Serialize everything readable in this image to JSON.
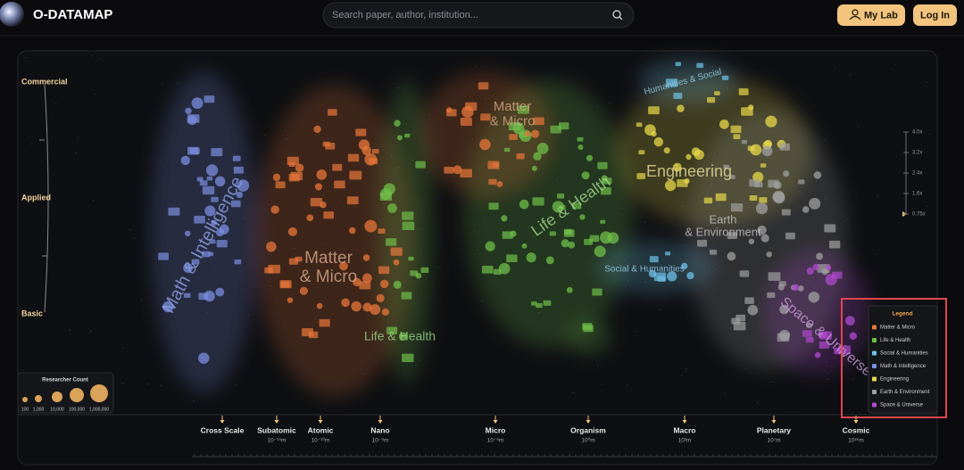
{
  "header": {
    "logo": "O-DATAMAP",
    "search_placeholder": "Search paper, author, institution...",
    "buttons": [
      "My Lab",
      "Log In"
    ]
  },
  "impact_axis": [
    "Commercial",
    "Applied",
    "Basic"
  ],
  "map_labels": [
    {
      "lines": [
        "Math & Intelligence"
      ]
    },
    {
      "lines": [
        "Matter",
        "& Micro"
      ]
    },
    {
      "lines": [
        "Matter",
        "& Micro"
      ]
    },
    {
      "lines": [
        "Life & Health"
      ]
    },
    {
      "lines": [
        "Life & Health"
      ]
    },
    {
      "lines": [
        "Engineering"
      ]
    },
    {
      "lines": [
        "Earth",
        "& Environment"
      ]
    },
    {
      "lines": [
        "Social & Humanities"
      ]
    },
    {
      "lines": [
        "Humanities & Social"
      ]
    },
    {
      "lines": [
        "Space & Universe"
      ]
    }
  ],
  "zoom_levels": [
    "4.0x",
    "3.2x",
    "2.4x",
    "1.6x",
    "0.75x"
  ],
  "researcher_count": {
    "title": "Researcher Count",
    "labels": [
      "100",
      "1,000",
      "10,000",
      "100,000",
      "1,000,000"
    ]
  },
  "legend": {
    "title": "Legend",
    "items": [
      {
        "name": "Matter & Micro",
        "color": "#e8763a"
      },
      {
        "name": "Life & Health",
        "color": "#6fbf4a"
      },
      {
        "name": "Social & Humanities",
        "color": "#6ec3e8"
      },
      {
        "name": "Math & Intelligence",
        "color": "#7b8ee0"
      },
      {
        "name": "Engineering",
        "color": "#e8d84a"
      },
      {
        "name": "Earth & Environment",
        "color": "#a0a0a0"
      },
      {
        "name": "Space & Universe",
        "color": "#b04ad0"
      }
    ]
  },
  "scale_bar": [
    {
      "name": "Cross Scale"
    },
    {
      "name": "Subatomic",
      "size": "10⁻¹⁵m"
    },
    {
      "name": "Atomic",
      "size": "10⁻¹⁰m"
    },
    {
      "name": "Nano",
      "size": "10⁻⁹m"
    },
    {
      "name": "Micro",
      "size": "10⁻⁶m"
    },
    {
      "name": "Organism",
      "size": "10⁰m"
    },
    {
      "name": "Macro",
      "size": "10³m"
    },
    {
      "name": "Planetary",
      "size": "10⁷m"
    },
    {
      "name": "Cosmic",
      "size": "10²⁶m"
    }
  ]
}
